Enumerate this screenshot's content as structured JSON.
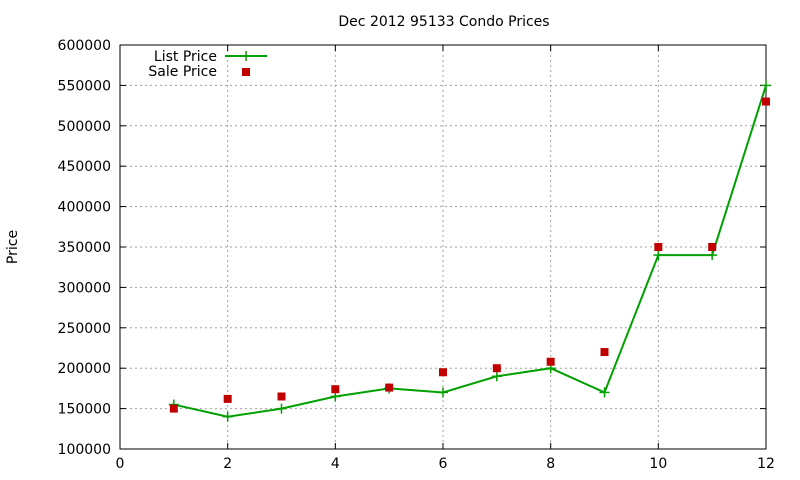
{
  "chart_data": {
    "type": "line",
    "title": "Dec 2012 95133 Condo Prices",
    "xlabel": "",
    "ylabel": "Price",
    "xlim": [
      0,
      12
    ],
    "ylim": [
      100000,
      600000
    ],
    "xticks": [
      0,
      2,
      4,
      6,
      8,
      10,
      12
    ],
    "yticks": [
      100000,
      150000,
      200000,
      250000,
      300000,
      350000,
      400000,
      450000,
      500000,
      550000,
      600000
    ],
    "grid": true,
    "legend_position": "top-left",
    "series": [
      {
        "name": "List Price",
        "style": "line-with-plus-markers",
        "color": "#00a000",
        "x": [
          1,
          2,
          3,
          4,
          5,
          6,
          7,
          8,
          9,
          10,
          11,
          12
        ],
        "values": [
          155000,
          140000,
          150000,
          165000,
          175000,
          170000,
          190000,
          200000,
          170000,
          340000,
          340000,
          550000
        ]
      },
      {
        "name": "Sale Price",
        "style": "square-markers",
        "color": "#c00000",
        "x": [
          1,
          2,
          3,
          4,
          5,
          6,
          7,
          8,
          9,
          10,
          11,
          12
        ],
        "values": [
          150000,
          162000,
          165000,
          174000,
          176000,
          195000,
          200000,
          208000,
          220000,
          350000,
          350000,
          530000
        ]
      }
    ]
  }
}
